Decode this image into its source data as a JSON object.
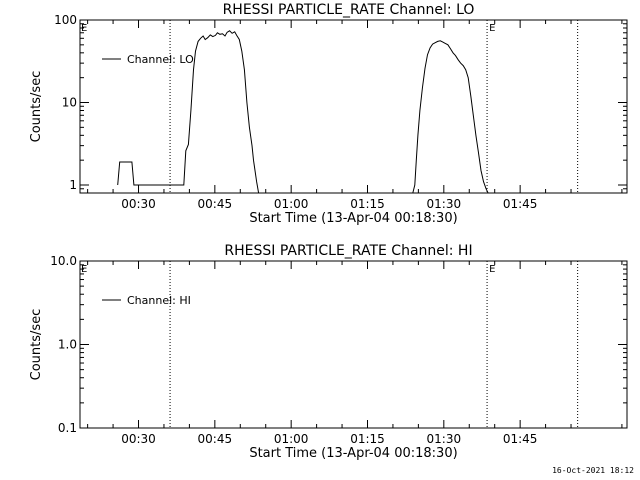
{
  "footer": {
    "timestamp": "16-Oct-2021 18:12"
  },
  "chart_data": [
    {
      "type": "line",
      "title": "RHESSI PARTICLE_RATE Channel: LO",
      "xlabel": "Start Time (13-Apr-04 00:18:30)",
      "ylabel": "Counts/sec",
      "y_scale": "log",
      "xlim": [
        18.5,
        126
      ],
      "ylim": [
        0.8,
        100
      ],
      "x_unit": "minutes after 00:00 UT on 13-Apr-04",
      "x_ticks": [
        {
          "value": 30,
          "label": "00:30"
        },
        {
          "value": 45,
          "label": "00:45"
        },
        {
          "value": 60,
          "label": "01:00"
        },
        {
          "value": 75,
          "label": "01:15"
        },
        {
          "value": 90,
          "label": "01:30"
        },
        {
          "value": 105,
          "label": "01:45"
        }
      ],
      "y_ticks": [
        {
          "value": 1,
          "label": "1"
        },
        {
          "value": 10,
          "label": "10"
        },
        {
          "value": 100,
          "label": "100"
        }
      ],
      "legend": {
        "position": "top-left",
        "entries": [
          "Channel: LO"
        ]
      },
      "event_lines": [
        {
          "x": 36.2,
          "label": ""
        },
        {
          "x": 98.5,
          "label": "E"
        },
        {
          "x": 116.3,
          "label": ""
        }
      ],
      "corner_label": "E",
      "series": [
        {
          "name": "Channel: LO",
          "x": [
            25.9,
            26.3,
            28.7,
            29.1,
            38.9,
            39.3,
            39.8,
            40.3,
            40.8,
            41.2,
            41.7,
            42.2,
            42.7,
            43.1,
            43.6,
            44.1,
            44.6,
            45.1,
            45.5,
            46.0,
            46.5,
            47.0,
            47.4,
            47.9,
            48.4,
            48.9,
            49.3,
            49.8,
            50.3,
            50.8,
            51.3,
            51.8,
            52.3,
            52.6,
            52.9,
            53.2,
            53.6,
            83.9,
            84.3,
            84.6,
            84.9,
            85.3,
            85.8,
            86.3,
            86.8,
            87.3,
            87.8,
            88.3,
            88.8,
            89.3,
            89.8,
            90.3,
            90.8,
            91.3,
            91.8,
            92.3,
            92.8,
            93.3,
            93.8,
            94.3,
            94.8,
            95.3,
            95.8,
            96.3,
            96.8,
            97.3,
            97.8,
            98.3,
            98.7
          ],
          "y": [
            1.0,
            1.9,
            1.9,
            1.0,
            1.0,
            2.6,
            3.1,
            8.0,
            25,
            42,
            55,
            60,
            64,
            58,
            61,
            66,
            63,
            65,
            70,
            67,
            68,
            64,
            71,
            74,
            69,
            72,
            65,
            58,
            42,
            25,
            10,
            5,
            3,
            2,
            1.5,
            1.1,
            0.8,
            0.8,
            1.0,
            2.0,
            4.0,
            8.0,
            15,
            26,
            38,
            46,
            51,
            53,
            55,
            56,
            54,
            52,
            50,
            45,
            40,
            37,
            33,
            30,
            28,
            25,
            20,
            12,
            7,
            4,
            2.5,
            1.5,
            1.1,
            0.9,
            0.8
          ]
        }
      ]
    },
    {
      "type": "line",
      "title": "RHESSI PARTICLE_RATE Channel: HI",
      "xlabel": "Start Time (13-Apr-04 00:18:30)",
      "ylabel": "Counts/sec",
      "y_scale": "log",
      "xlim": [
        18.5,
        126
      ],
      "ylim": [
        0.1,
        10
      ],
      "x_unit": "minutes after 00:00 UT on 13-Apr-04",
      "x_ticks": [
        {
          "value": 30,
          "label": "00:30"
        },
        {
          "value": 45,
          "label": "00:45"
        },
        {
          "value": 60,
          "label": "01:00"
        },
        {
          "value": 75,
          "label": "01:15"
        },
        {
          "value": 90,
          "label": "01:30"
        },
        {
          "value": 105,
          "label": "01:45"
        }
      ],
      "y_ticks": [
        {
          "value": 0.1,
          "label": "0.1"
        },
        {
          "value": 1,
          "label": "1.0"
        },
        {
          "value": 10,
          "label": "10.0"
        }
      ],
      "legend": {
        "position": "top-left",
        "entries": [
          "Channel: HI"
        ]
      },
      "event_lines": [
        {
          "x": 36.2,
          "label": ""
        },
        {
          "x": 98.5,
          "label": "E"
        },
        {
          "x": 116.3,
          "label": ""
        }
      ],
      "corner_label": "E",
      "series": [
        {
          "name": "Channel: HI",
          "x": [],
          "y": []
        }
      ]
    }
  ]
}
